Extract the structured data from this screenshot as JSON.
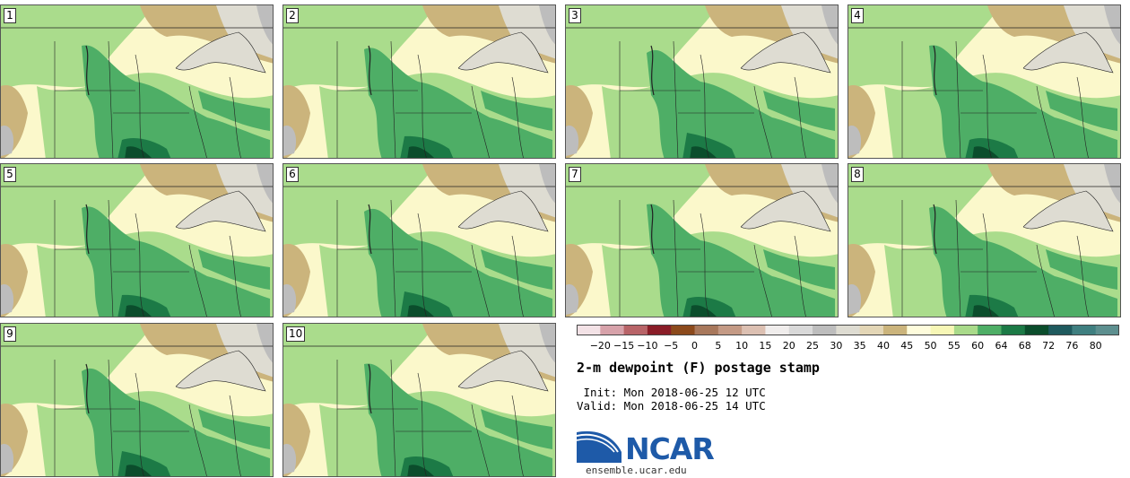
{
  "panels": [
    {
      "label": "1"
    },
    {
      "label": "2"
    },
    {
      "label": "3"
    },
    {
      "label": "4"
    },
    {
      "label": "5"
    },
    {
      "label": "6"
    },
    {
      "label": "7"
    },
    {
      "label": "8"
    },
    {
      "label": "9"
    },
    {
      "label": "10"
    }
  ],
  "colorbar": {
    "colors": [
      "#f3e2e6",
      "#d7a2aa",
      "#b86468",
      "#8a1d28",
      "#8c4a1c",
      "#a8785c",
      "#c49a85",
      "#dcc0b2",
      "#f0edec",
      "#d9d9d9",
      "#bdbdbd",
      "#dedcd2",
      "#e3d6b6",
      "#cbb47c",
      "#fefcdc",
      "#f7f7b6",
      "#a9da8a",
      "#4eae66",
      "#1c7a46",
      "#0b4d2c",
      "#1f5a5e",
      "#3f7f80",
      "#5d8f8f"
    ],
    "tick_labels": [
      "−20",
      "−15",
      "−10",
      "−5",
      "0",
      "5",
      "10",
      "15",
      "20",
      "25",
      "30",
      "35",
      "40",
      "45",
      "50",
      "55",
      "60",
      "64",
      "68",
      "72",
      "76",
      "80"
    ]
  },
  "title": "2-m dewpoint (F) postage stamp",
  "init": " Init: Mon 2018-06-25 12 UTC",
  "valid": "Valid: Mon 2018-06-25 14 UTC",
  "logo": {
    "name": "NCAR",
    "site": "ensemble.ucar.edu"
  },
  "map_colors": {
    "pale": "#fbf8cb",
    "yellow": "#f6f5b4",
    "light_green": "#aadc8c",
    "green": "#4eae66",
    "dark_green": "#1c7a46",
    "darkest_green": "#0b4d2c",
    "tan": "#cbb47c",
    "grey": "#dedcd2",
    "dark_grey": "#bdbdbd",
    "lake": "#dedcd2"
  }
}
